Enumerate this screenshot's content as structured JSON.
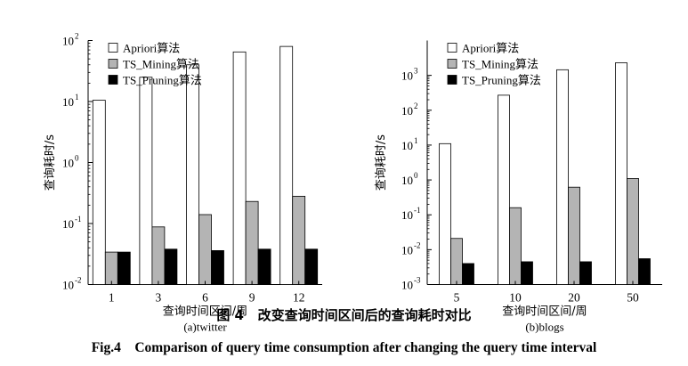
{
  "figure": {
    "caption_cn_label": "图 4",
    "caption_cn_text": "改变查询时间区间后的查询耗时对比",
    "caption_en_label": "Fig.4",
    "caption_en_text": "Comparison of query time consumption after changing the query time interval"
  },
  "colors": {
    "apriori": "#ffffff",
    "ts_mining": "#b4b4b4",
    "ts_pruning": "#000000"
  },
  "chart_data": [
    {
      "type": "bar",
      "yscale": "log",
      "ylim": [
        0.01,
        100
      ],
      "ytick_labels": [
        "10",
        "10",
        "10",
        "10",
        "10"
      ],
      "ytick_exponents": [
        "-2",
        "-1",
        "0",
        "1",
        "2"
      ],
      "ylabel": "查询耗时/s",
      "xlabel": "查询时间区间/周",
      "subtitle": "(a)twitter",
      "categories": [
        "1",
        "3",
        "6",
        "9",
        "12"
      ],
      "legend_position": "top-left",
      "series": [
        {
          "name": "Apriori算法",
          "values": [
            10.5,
            25,
            40,
            65,
            80
          ]
        },
        {
          "name": "TS_Mining算法",
          "values": [
            0.034,
            0.088,
            0.14,
            0.23,
            0.28
          ]
        },
        {
          "name": "TS_Pruning算法",
          "values": [
            0.034,
            0.038,
            0.036,
            0.038,
            0.038
          ]
        }
      ]
    },
    {
      "type": "bar",
      "yscale": "log",
      "ylim": [
        0.001,
        10000
      ],
      "ytick_labels": [
        "10",
        "10",
        "10",
        "10",
        "10",
        "10",
        "10"
      ],
      "ytick_exponents": [
        "-3",
        "-2",
        "-1",
        "0",
        "1",
        "2",
        "3"
      ],
      "ylabel": "查询耗时/s",
      "xlabel": "查询时间区间/周",
      "subtitle": "(b)blogs",
      "categories": [
        "5",
        "10",
        "20",
        "50"
      ],
      "legend_position": "top-left",
      "series": [
        {
          "name": "Apriori算法",
          "values": [
            11,
            270,
            1450,
            2300
          ]
        },
        {
          "name": "TS_Mining算法",
          "values": [
            0.021,
            0.16,
            0.62,
            1.1
          ]
        },
        {
          "name": "TS_Pruning算法",
          "values": [
            0.004,
            0.0045,
            0.0045,
            0.0055
          ]
        }
      ]
    }
  ]
}
